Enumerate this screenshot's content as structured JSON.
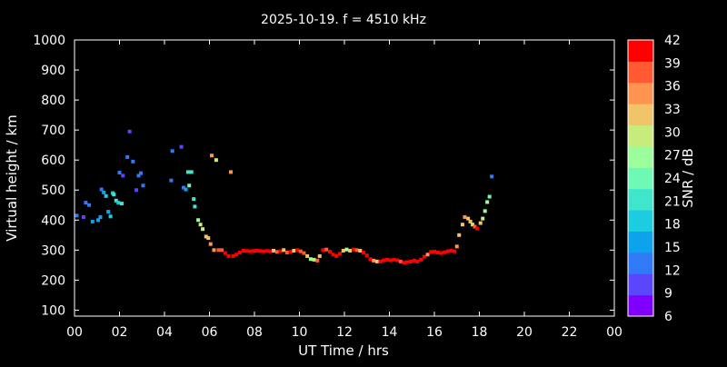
{
  "chart_data": {
    "type": "scatter",
    "title": "2025-10-19. f = 4510 kHz",
    "xlabel": "UT Time / hrs",
    "ylabel": "Virtual height / km",
    "xlim": [
      0,
      24
    ],
    "ylim": [
      80,
      1000
    ],
    "x_ticks": [
      "00",
      "02",
      "04",
      "06",
      "08",
      "10",
      "12",
      "14",
      "16",
      "18",
      "20",
      "22",
      "00"
    ],
    "y_ticks": [
      100,
      200,
      300,
      400,
      500,
      600,
      700,
      800,
      900,
      1000
    ],
    "grid": false,
    "background": "#000000",
    "colorbar": {
      "label": "SNR / dB",
      "range": [
        6,
        42
      ],
      "ticks": [
        6,
        9,
        12,
        15,
        18,
        21,
        24,
        27,
        30,
        33,
        36,
        39,
        42
      ],
      "colors": [
        "#8000ff",
        "#5a46fc",
        "#3079f7",
        "#0ca2ec",
        "#1cccdf",
        "#40e6cc",
        "#6ef9b5",
        "#9cfe9a",
        "#c8ec7c",
        "#f2c46a",
        "#ff9450",
        "#ff5a32",
        "#ff0000"
      ]
    },
    "points": [
      [
        0.1,
        415,
        12
      ],
      [
        0.4,
        410,
        11
      ],
      [
        0.5,
        458,
        12
      ],
      [
        0.65,
        450,
        13
      ],
      [
        0.8,
        395,
        16
      ],
      [
        1.05,
        400,
        15
      ],
      [
        1.15,
        410,
        17
      ],
      [
        1.2,
        502,
        12
      ],
      [
        1.3,
        492,
        16
      ],
      [
        1.4,
        480,
        19
      ],
      [
        1.5,
        428,
        16
      ],
      [
        1.6,
        412,
        19
      ],
      [
        1.7,
        490,
        18
      ],
      [
        1.75,
        485,
        20
      ],
      [
        1.85,
        465,
        21
      ],
      [
        1.95,
        458,
        19
      ],
      [
        2.0,
        558,
        12
      ],
      [
        2.1,
        455,
        20
      ],
      [
        2.15,
        548,
        11
      ],
      [
        2.35,
        610,
        12
      ],
      [
        2.45,
        695,
        11
      ],
      [
        2.6,
        595,
        13
      ],
      [
        2.75,
        500,
        11
      ],
      [
        2.85,
        548,
        13
      ],
      [
        2.95,
        556,
        12
      ],
      [
        3.05,
        515,
        12
      ],
      [
        4.3,
        532,
        12
      ],
      [
        4.35,
        630,
        12
      ],
      [
        4.75,
        644,
        11
      ],
      [
        4.85,
        508,
        13
      ],
      [
        4.95,
        502,
        15
      ],
      [
        5.05,
        560,
        20
      ],
      [
        5.1,
        515,
        24
      ],
      [
        5.2,
        560,
        20
      ],
      [
        5.3,
        470,
        21
      ],
      [
        5.35,
        445,
        22
      ],
      [
        5.5,
        400,
        27
      ],
      [
        5.6,
        385,
        29
      ],
      [
        5.7,
        370,
        29
      ],
      [
        5.85,
        345,
        31
      ],
      [
        5.95,
        340,
        33
      ],
      [
        6.05,
        320,
        36
      ],
      [
        6.1,
        615,
        36
      ],
      [
        6.2,
        300,
        36
      ],
      [
        6.3,
        600,
        29
      ],
      [
        6.4,
        300,
        37
      ],
      [
        6.55,
        300,
        39
      ],
      [
        6.7,
        290,
        40
      ],
      [
        6.85,
        280,
        42
      ],
      [
        6.95,
        560,
        36
      ],
      [
        7.05,
        280,
        42
      ],
      [
        7.2,
        285,
        41
      ],
      [
        7.35,
        292,
        40
      ],
      [
        7.5,
        298,
        40
      ],
      [
        7.65,
        297,
        41
      ],
      [
        7.8,
        296,
        40
      ],
      [
        7.95,
        297,
        41
      ],
      [
        8.1,
        298,
        40
      ],
      [
        8.25,
        297,
        41
      ],
      [
        8.4,
        296,
        40
      ],
      [
        8.55,
        297,
        41
      ],
      [
        8.7,
        296,
        40
      ],
      [
        8.85,
        298,
        33
      ],
      [
        9.0,
        294,
        39
      ],
      [
        9.15,
        296,
        40
      ],
      [
        9.3,
        300,
        31
      ],
      [
        9.45,
        292,
        39
      ],
      [
        9.6,
        294,
        40
      ],
      [
        9.75,
        298,
        32
      ],
      [
        9.9,
        300,
        40
      ],
      [
        10.05,
        296,
        39
      ],
      [
        10.2,
        290,
        37
      ],
      [
        10.35,
        280,
        31
      ],
      [
        10.5,
        270,
        27
      ],
      [
        10.65,
        268,
        30
      ],
      [
        10.8,
        265,
        38
      ],
      [
        10.9,
        280,
        33
      ],
      [
        11.05,
        300,
        40
      ],
      [
        11.2,
        302,
        39
      ],
      [
        11.35,
        295,
        40
      ],
      [
        11.5,
        285,
        41
      ],
      [
        11.65,
        280,
        42
      ],
      [
        11.8,
        288,
        40
      ],
      [
        11.95,
        298,
        32
      ],
      [
        12.1,
        302,
        27
      ],
      [
        12.25,
        298,
        33
      ],
      [
        12.4,
        302,
        40
      ],
      [
        12.55,
        300,
        39
      ],
      [
        12.7,
        298,
        31
      ],
      [
        12.85,
        292,
        40
      ],
      [
        13.0,
        282,
        41
      ],
      [
        13.15,
        270,
        40
      ],
      [
        13.3,
        265,
        36
      ],
      [
        13.45,
        262,
        33
      ],
      [
        13.6,
        262,
        40
      ],
      [
        13.75,
        266,
        41
      ],
      [
        13.9,
        268,
        40
      ],
      [
        14.05,
        266,
        41
      ],
      [
        14.2,
        268,
        40
      ],
      [
        14.35,
        266,
        41
      ],
      [
        14.5,
        262,
        38
      ],
      [
        14.65,
        258,
        42
      ],
      [
        14.8,
        260,
        40
      ],
      [
        14.95,
        262,
        41
      ],
      [
        15.1,
        265,
        40
      ],
      [
        15.25,
        262,
        41
      ],
      [
        15.4,
        268,
        40
      ],
      [
        15.55,
        278,
        41
      ],
      [
        15.7,
        285,
        36
      ],
      [
        15.85,
        294,
        40
      ],
      [
        16.0,
        295,
        41
      ],
      [
        16.15,
        292,
        40
      ],
      [
        16.3,
        290,
        41
      ],
      [
        16.45,
        293,
        40
      ],
      [
        16.6,
        296,
        41
      ],
      [
        16.75,
        298,
        40
      ],
      [
        16.9,
        296,
        41
      ],
      [
        17.0,
        312,
        36
      ],
      [
        17.1,
        350,
        33
      ],
      [
        17.25,
        385,
        32
      ],
      [
        17.35,
        410,
        36
      ],
      [
        17.5,
        405,
        31
      ],
      [
        17.6,
        395,
        33
      ],
      [
        17.7,
        385,
        29
      ],
      [
        17.8,
        378,
        38
      ],
      [
        17.9,
        372,
        40
      ],
      [
        18.05,
        390,
        31
      ],
      [
        18.15,
        405,
        30
      ],
      [
        18.25,
        430,
        27
      ],
      [
        18.35,
        460,
        26
      ],
      [
        18.45,
        478,
        24
      ],
      [
        18.55,
        545,
        12
      ]
    ]
  }
}
